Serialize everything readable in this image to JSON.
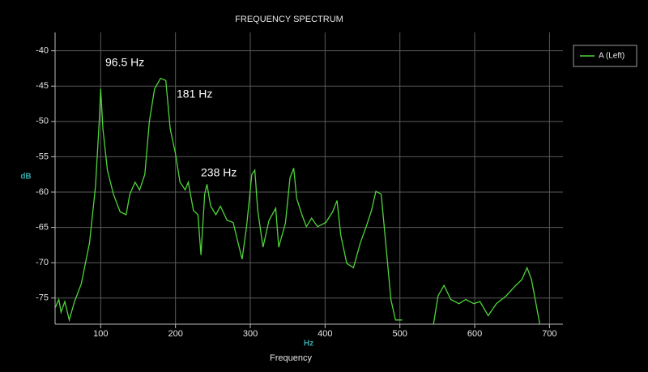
{
  "chart_data": {
    "type": "line",
    "title": "FREQUENCY SPECTRUM",
    "x_label": "Frequency",
    "x_unit": "Hz",
    "y_label": "dB",
    "xlim": [
      39,
      718
    ],
    "ylim": [
      -78.7,
      -37.4
    ],
    "xticks": [
      100,
      200,
      300,
      400,
      500,
      600,
      700
    ],
    "yticks": [
      -40,
      -45,
      -50,
      -55,
      -60,
      -65,
      -70,
      -75
    ],
    "grid": true,
    "legend": "upper right",
    "annotations": [
      "96.5 Hz",
      "181 Hz",
      "238 Hz"
    ],
    "series": [
      {
        "name": "A (Left)",
        "color": "#4fd43a",
        "x": [
          39,
          44,
          47,
          52,
          58,
          65,
          74,
          85,
          93,
          98,
          100,
          103,
          109,
          117,
          126,
          134,
          139,
          146,
          152,
          159,
          165,
          172,
          180,
          187,
          193,
          200,
          206,
          213,
          217,
          224,
          230,
          234,
          239,
          242,
          247,
          254,
          260,
          269,
          277,
          289,
          295,
          302,
          306,
          310,
          317,
          325,
          334,
          338,
          347,
          353,
          358,
          362,
          369,
          375,
          382,
          390,
          401,
          410,
          416,
          421,
          429,
          438,
          447,
          455,
          462,
          468,
          475,
          481,
          488,
          494,
          503,
          520,
          545,
          551,
          559,
          568,
          579,
          588,
          599,
          607,
          618,
          629,
          642,
          655,
          663,
          670,
          676,
          683,
          687
        ],
        "values": [
          -76.4,
          -75.2,
          -77,
          -75.5,
          -78.1,
          -75.5,
          -73,
          -67.2,
          -59.2,
          -50,
          -45.4,
          -51.1,
          -56.9,
          -60.3,
          -62.8,
          -63.2,
          -60.3,
          -58.6,
          -59.7,
          -57.5,
          -50,
          -45.4,
          -43.9,
          -44.2,
          -51.1,
          -54.6,
          -58.6,
          -59.7,
          -58.6,
          -62.6,
          -63.2,
          -68.9,
          -60.3,
          -58.9,
          -62,
          -63.2,
          -62,
          -64,
          -64.3,
          -69.5,
          -64.9,
          -57.5,
          -56.9,
          -62.6,
          -67.8,
          -64,
          -62.3,
          -67.8,
          -64.4,
          -58,
          -56.6,
          -60.9,
          -63.2,
          -64.9,
          -63.7,
          -64.9,
          -64.3,
          -62.8,
          -61.2,
          -66.1,
          -70.1,
          -70.7,
          -67.2,
          -64.9,
          -62.6,
          -59.9,
          -60.3,
          -67.2,
          -75.2,
          -78.1,
          -78.1,
          null,
          -78.7,
          -74.7,
          -73.2,
          -75.2,
          -75.8,
          -75.2,
          -75.8,
          -75.5,
          -77.5,
          -75.8,
          -74.7,
          -73.2,
          -72.4,
          -70.7,
          -72.4,
          -76.4,
          -78.7
        ]
      }
    ]
  }
}
